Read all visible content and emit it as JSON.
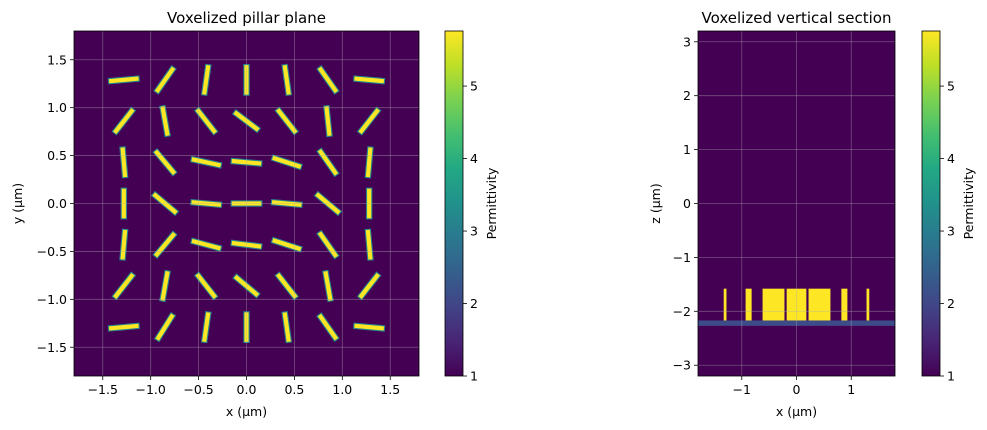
{
  "chart_data": [
    {
      "type": "heatmap",
      "title": "Voxelized pillar plane",
      "xlabel": "x (µm)",
      "ylabel": "y (µm)",
      "xlim": [
        -1.8,
        1.8
      ],
      "ylim": [
        -1.8,
        1.8
      ],
      "xticks": [
        -1.5,
        -1.0,
        -0.5,
        0.0,
        0.5,
        1.0,
        1.5
      ],
      "xtick_labels": [
        "−1.5",
        "−1.0",
        "−0.5",
        "0.0",
        "0.5",
        "1.0",
        "1.5"
      ],
      "yticks": [
        -1.5,
        -1.0,
        -0.5,
        0.0,
        0.5,
        1.0,
        1.5
      ],
      "ytick_labels": [
        "−1.5",
        "−1.0",
        "−0.5",
        "0.0",
        "0.5",
        "1.0",
        "1.5"
      ],
      "grid": true,
      "background_permittivity": 1.0,
      "pillar_permittivity": 5.76,
      "pillar_size_um": [
        0.32,
        0.055
      ],
      "pillars": [
        {
          "x": -1.28,
          "y": 1.29,
          "angle_deg": 5
        },
        {
          "x": -0.85,
          "y": 1.29,
          "angle_deg": 55
        },
        {
          "x": -0.42,
          "y": 1.29,
          "angle_deg": 82
        },
        {
          "x": 0.0,
          "y": 1.29,
          "angle_deg": 90
        },
        {
          "x": 0.42,
          "y": 1.29,
          "angle_deg": 98
        },
        {
          "x": 0.85,
          "y": 1.29,
          "angle_deg": 125
        },
        {
          "x": 1.28,
          "y": 1.29,
          "angle_deg": 175
        },
        {
          "x": -1.28,
          "y": 0.86,
          "angle_deg": 52
        },
        {
          "x": -0.85,
          "y": 0.86,
          "angle_deg": 100
        },
        {
          "x": -0.42,
          "y": 0.86,
          "angle_deg": 128
        },
        {
          "x": 0.0,
          "y": 0.86,
          "angle_deg": 143
        },
        {
          "x": 0.42,
          "y": 0.86,
          "angle_deg": 128
        },
        {
          "x": 0.85,
          "y": 0.86,
          "angle_deg": 96
        },
        {
          "x": 1.28,
          "y": 0.86,
          "angle_deg": 52
        },
        {
          "x": -1.28,
          "y": 0.43,
          "angle_deg": 95
        },
        {
          "x": -0.85,
          "y": 0.43,
          "angle_deg": 130
        },
        {
          "x": -0.42,
          "y": 0.43,
          "angle_deg": 168
        },
        {
          "x": 0.0,
          "y": 0.43,
          "angle_deg": 175
        },
        {
          "x": 0.42,
          "y": 0.43,
          "angle_deg": 162
        },
        {
          "x": 0.85,
          "y": 0.43,
          "angle_deg": 125
        },
        {
          "x": 1.28,
          "y": 0.43,
          "angle_deg": 85
        },
        {
          "x": -1.28,
          "y": 0.0,
          "angle_deg": 90
        },
        {
          "x": -0.85,
          "y": 0.0,
          "angle_deg": 140
        },
        {
          "x": -0.42,
          "y": 0.0,
          "angle_deg": 175
        },
        {
          "x": 0.0,
          "y": 0.0,
          "angle_deg": 0
        },
        {
          "x": 0.42,
          "y": 0.0,
          "angle_deg": 175
        },
        {
          "x": 0.85,
          "y": 0.0,
          "angle_deg": 140
        },
        {
          "x": 1.28,
          "y": 0.0,
          "angle_deg": 90
        },
        {
          "x": -1.28,
          "y": -0.43,
          "angle_deg": 85
        },
        {
          "x": -0.85,
          "y": -0.43,
          "angle_deg": 50
        },
        {
          "x": -0.42,
          "y": -0.43,
          "angle_deg": 165
        },
        {
          "x": 0.0,
          "y": -0.43,
          "angle_deg": 173
        },
        {
          "x": 0.42,
          "y": -0.43,
          "angle_deg": 162
        },
        {
          "x": 0.85,
          "y": -0.43,
          "angle_deg": 125
        },
        {
          "x": 1.28,
          "y": -0.43,
          "angle_deg": 95
        },
        {
          "x": -1.28,
          "y": -0.86,
          "angle_deg": 52
        },
        {
          "x": -0.85,
          "y": -0.86,
          "angle_deg": 80
        },
        {
          "x": -0.42,
          "y": -0.86,
          "angle_deg": 128
        },
        {
          "x": 0.0,
          "y": -0.86,
          "angle_deg": 140
        },
        {
          "x": 0.42,
          "y": -0.86,
          "angle_deg": 128
        },
        {
          "x": 0.85,
          "y": -0.86,
          "angle_deg": 100
        },
        {
          "x": 1.28,
          "y": -0.86,
          "angle_deg": 52
        },
        {
          "x": -1.28,
          "y": -1.29,
          "angle_deg": 5
        },
        {
          "x": -0.85,
          "y": -1.29,
          "angle_deg": 58
        },
        {
          "x": -0.42,
          "y": -1.29,
          "angle_deg": 82
        },
        {
          "x": 0.0,
          "y": -1.29,
          "angle_deg": 90
        },
        {
          "x": 0.42,
          "y": -1.29,
          "angle_deg": 98
        },
        {
          "x": 0.85,
          "y": -1.29,
          "angle_deg": 125
        },
        {
          "x": 1.28,
          "y": -1.29,
          "angle_deg": 175
        }
      ],
      "colorbar": {
        "label": "Permittivity",
        "range": [
          1.0,
          5.76
        ],
        "ticks": [
          1,
          2,
          3,
          4,
          5
        ],
        "tick_labels": [
          "1",
          "2",
          "3",
          "4",
          "5"
        ],
        "colormap": "viridis"
      }
    },
    {
      "type": "heatmap",
      "title": "Voxelized vertical section",
      "xlabel": "x (µm)",
      "ylabel": "z (µm)",
      "xlim": [
        -1.8,
        1.8
      ],
      "ylim": [
        -3.2,
        3.2
      ],
      "xticks": [
        -1,
        0,
        1
      ],
      "xtick_labels": [
        "−1",
        "0",
        "1"
      ],
      "yticks": [
        -3,
        -2,
        -1,
        0,
        1,
        2,
        3
      ],
      "ytick_labels": [
        "−3",
        "−2",
        "−1",
        "0",
        "1",
        "2",
        "3"
      ],
      "grid": true,
      "background_permittivity": 1.0,
      "substrate": {
        "z_min": -2.27,
        "z_max": -2.17,
        "permittivity": 2.1
      },
      "pillar_z_range": [
        -2.17,
        -1.58
      ],
      "pillar_permittivity": 5.76,
      "pillars_x_extent": [
        [
          -1.33,
          -1.28
        ],
        [
          -0.93,
          -0.82
        ],
        [
          -0.62,
          -0.22
        ],
        [
          -0.18,
          0.18
        ],
        [
          0.22,
          0.62
        ],
        [
          0.82,
          0.93
        ],
        [
          1.28,
          1.33
        ]
      ],
      "colorbar": {
        "label": "Permittivity",
        "range": [
          1.0,
          5.76
        ],
        "ticks": [
          1,
          2,
          3,
          4,
          5
        ],
        "tick_labels": [
          "1",
          "2",
          "3",
          "4",
          "5"
        ],
        "colormap": "viridis"
      }
    }
  ]
}
